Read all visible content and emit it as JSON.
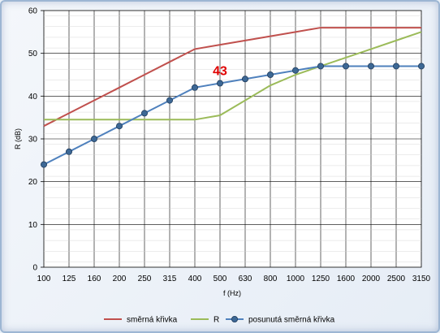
{
  "chart_data": {
    "type": "line",
    "categories": [
      "100",
      "125",
      "160",
      "200",
      "250",
      "315",
      "400",
      "500",
      "630",
      "800",
      "1000",
      "1250",
      "1600",
      "2000",
      "2500",
      "3150"
    ],
    "xlabel": "f (Hz)",
    "ylabel": "R (dB)",
    "ylim": [
      0,
      60
    ],
    "yticks": [
      0,
      10,
      20,
      30,
      40,
      50,
      60
    ],
    "grid": true,
    "legend_position": "bottom",
    "series": [
      {
        "name": "směrná křivka",
        "color": "#c0504d",
        "markers": false,
        "values": [
          33,
          36,
          39,
          42,
          45,
          48,
          51,
          52,
          53,
          54,
          55,
          56,
          56,
          56,
          56,
          56
        ]
      },
      {
        "name": "R",
        "color": "#9bbb59",
        "markers": false,
        "values": [
          34.5,
          34.5,
          34.5,
          34.5,
          34.5,
          34.5,
          34.5,
          35.5,
          39,
          42.5,
          45,
          47,
          49,
          51,
          53,
          55
        ]
      },
      {
        "name": "posunutá směrná křivka",
        "color": "#4f81bd",
        "markers": true,
        "values": [
          24,
          27,
          30,
          33,
          36,
          39,
          42,
          43,
          44,
          45,
          46,
          47,
          47,
          47,
          47,
          47
        ]
      }
    ],
    "annotation": {
      "text": "43",
      "category": "500",
      "value": 43
    }
  }
}
